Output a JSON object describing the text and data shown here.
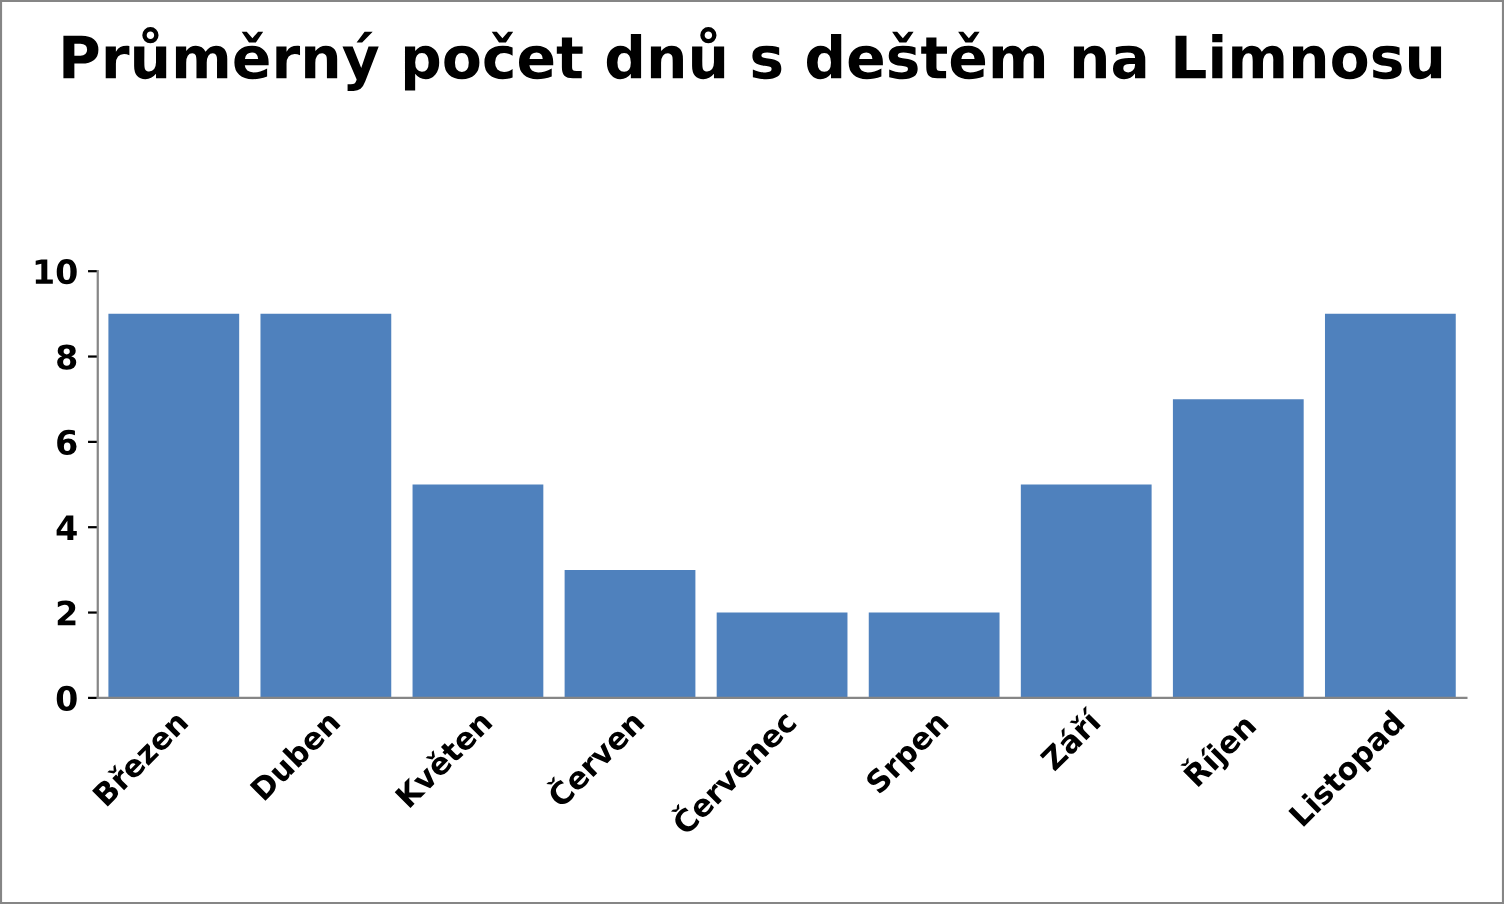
{
  "chart_data": {
    "type": "bar",
    "title": "Průměrný počet dnů s deštěm na Limnosu",
    "categories": [
      "Březen",
      "Duben",
      "Květen",
      "Červen",
      "Červenec",
      "Srpen",
      "Září",
      "Říjen",
      "Listopad"
    ],
    "values": [
      9,
      9,
      5,
      3,
      2,
      2,
      5,
      7,
      9
    ],
    "color": "#4f81bd",
    "ylim": [
      0,
      10
    ],
    "yticks": [
      0,
      2,
      4,
      6,
      8,
      10
    ],
    "grid": false,
    "legend": false
  }
}
